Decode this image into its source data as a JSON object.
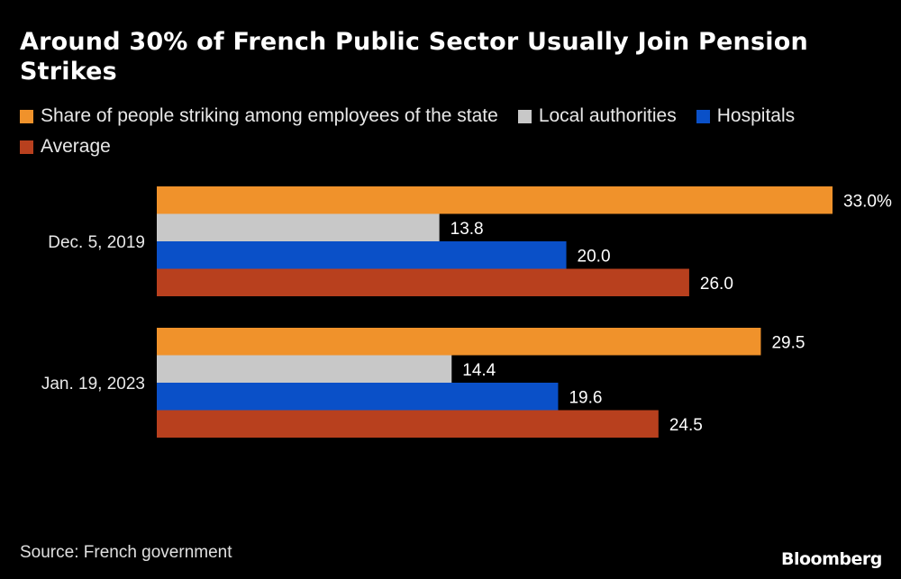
{
  "header": {
    "title": "Around 30% of French Public Sector Usually Join Pension Strikes"
  },
  "chart_data": {
    "type": "bar",
    "orientation": "horizontal",
    "title": "Around 30% of French Public Sector Usually Join Pension Strikes",
    "categories": [
      "Dec. 5, 2019",
      "Jan. 19, 2023"
    ],
    "series": [
      {
        "name": "Share of people striking among employees of the state",
        "color": "#f0922b",
        "values": [
          33.0,
          29.5
        ],
        "labels": [
          "33.0%",
          "29.5"
        ]
      },
      {
        "name": "Local authorities",
        "color": "#c8c8c8",
        "values": [
          13.8,
          14.4
        ],
        "labels": [
          "13.8",
          "14.4"
        ]
      },
      {
        "name": "Hospitals",
        "color": "#0a50c8",
        "values": [
          20.0,
          19.6
        ],
        "labels": [
          "20.0",
          "19.6"
        ]
      },
      {
        "name": "Average",
        "color": "#b8401e",
        "values": [
          26.0,
          24.5
        ],
        "labels": [
          "26.0",
          "24.5"
        ]
      }
    ],
    "xlim": [
      0,
      33
    ],
    "legend_position": "top",
    "grid": false
  },
  "footer": {
    "source": "Source: French government",
    "brand": "Bloomberg"
  }
}
